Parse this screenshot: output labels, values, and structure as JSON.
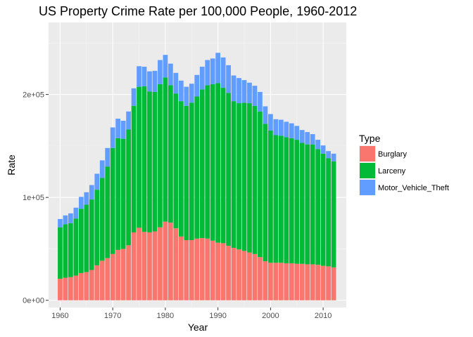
{
  "chart_data": {
    "type": "bar",
    "stacked": true,
    "title": "US Property Crime Rate per 100,000 People, 1960-2012",
    "xlabel": "Year",
    "ylabel": "Rate",
    "x_ticks": [
      1960,
      1970,
      1980,
      1990,
      2000,
      2010
    ],
    "y_ticks": [
      0,
      100000,
      200000
    ],
    "y_tick_labels": [
      "0e+00",
      "1e+05",
      "2e+05"
    ],
    "xlim": [
      1957.8,
      2014.4
    ],
    "ylim": [
      -7000,
      270000
    ],
    "grid": true,
    "legend": {
      "title": "Type",
      "position": "right"
    },
    "x": [
      1960,
      1961,
      1962,
      1963,
      1964,
      1965,
      1966,
      1967,
      1968,
      1969,
      1970,
      1971,
      1972,
      1973,
      1974,
      1975,
      1976,
      1977,
      1978,
      1979,
      1980,
      1981,
      1982,
      1983,
      1984,
      1985,
      1986,
      1987,
      1988,
      1989,
      1990,
      1991,
      1992,
      1993,
      1994,
      1995,
      1996,
      1997,
      1998,
      1999,
      2000,
      2001,
      2002,
      2003,
      2004,
      2005,
      2006,
      2007,
      2008,
      2009,
      2010,
      2011,
      2012
    ],
    "series": [
      {
        "name": "Burglary",
        "color": "#F8766D",
        "values": [
          21000,
          22000,
          22500,
          24000,
          26500,
          27500,
          29500,
          34000,
          38500,
          41000,
          45000,
          49000,
          50000,
          53500,
          66000,
          70500,
          66500,
          66000,
          67000,
          71000,
          76500,
          75500,
          70000,
          62000,
          58500,
          58500,
          60000,
          60500,
          60000,
          58000,
          56000,
          55500,
          53000,
          51000,
          49500,
          48000,
          46500,
          45000,
          42000,
          38000,
          36500,
          36500,
          36500,
          36000,
          36000,
          35500,
          35500,
          35000,
          35000,
          34500,
          33500,
          33000,
          32000
        ]
      },
      {
        "name": "Larceny",
        "color": "#00BA38",
        "values": [
          50000,
          52000,
          52500,
          55500,
          62500,
          65500,
          68500,
          73500,
          80500,
          89000,
          103000,
          108500,
          107000,
          112500,
          123000,
          137000,
          141500,
          137000,
          135500,
          139000,
          140000,
          133500,
          131000,
          131500,
          130500,
          133500,
          138000,
          144500,
          149000,
          152000,
          155000,
          151000,
          148500,
          142500,
          142000,
          144000,
          145000,
          144000,
          141500,
          133500,
          128500,
          124000,
          123500,
          122500,
          121500,
          120500,
          117500,
          116500,
          116500,
          112500,
          109000,
          105000,
          103000
        ]
      },
      {
        "name": "Motor_Vehicle_Theft",
        "color": "#619CFF",
        "values": [
          8000,
          8500,
          9500,
          10500,
          11500,
          12000,
          14000,
          15500,
          17000,
          18000,
          20000,
          19000,
          17500,
          17500,
          17000,
          20000,
          19000,
          19500,
          20500,
          23500,
          22000,
          21000,
          20000,
          20000,
          18500,
          18500,
          21000,
          22000,
          24500,
          25000,
          29500,
          29500,
          27000,
          25000,
          24500,
          22000,
          20000,
          19500,
          19000,
          17000,
          16000,
          15500,
          15500,
          15000,
          14500,
          13500,
          12500,
          12000,
          10000,
          9000,
          8000,
          7000,
          7500
        ]
      }
    ]
  }
}
